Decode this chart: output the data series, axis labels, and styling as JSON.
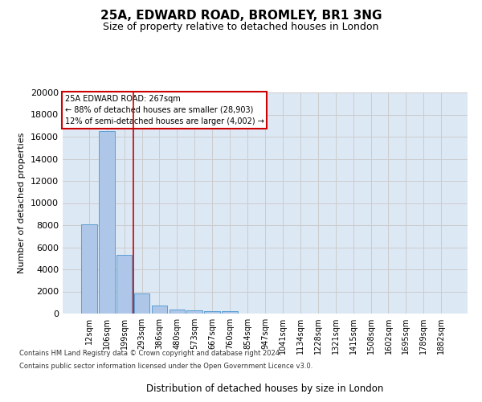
{
  "title": "25A, EDWARD ROAD, BROMLEY, BR1 3NG",
  "subtitle": "Size of property relative to detached houses in London",
  "xlabel": "Distribution of detached houses by size in London",
  "ylabel": "Number of detached properties",
  "categories": [
    "12sqm",
    "106sqm",
    "199sqm",
    "293sqm",
    "386sqm",
    "480sqm",
    "573sqm",
    "667sqm",
    "760sqm",
    "854sqm",
    "947sqm",
    "1041sqm",
    "1134sqm",
    "1228sqm",
    "1321sqm",
    "1415sqm",
    "1508sqm",
    "1602sqm",
    "1695sqm",
    "1789sqm",
    "1882sqm"
  ],
  "values": [
    8100,
    16500,
    5300,
    1850,
    700,
    380,
    290,
    220,
    200,
    0,
    0,
    0,
    0,
    0,
    0,
    0,
    0,
    0,
    0,
    0,
    0
  ],
  "bar_color": "#aec6e8",
  "bar_edge_color": "#5a9fd4",
  "vline_x": 2.5,
  "vline_color": "#cc0000",
  "annotation_text": "25A EDWARD ROAD: 267sqm\n← 88% of detached houses are smaller (28,903)\n12% of semi-detached houses are larger (4,002) →",
  "annotation_box_color": "#cc0000",
  "ylim": [
    0,
    20000
  ],
  "yticks": [
    0,
    2000,
    4000,
    6000,
    8000,
    10000,
    12000,
    14000,
    16000,
    18000,
    20000
  ],
  "grid_color": "#cccccc",
  "background_color": "#dde8f5",
  "title_fontsize": 11,
  "subtitle_fontsize": 9,
  "footer_line1": "Contains HM Land Registry data © Crown copyright and database right 2024.",
  "footer_line2": "Contains public sector information licensed under the Open Government Licence v3.0."
}
